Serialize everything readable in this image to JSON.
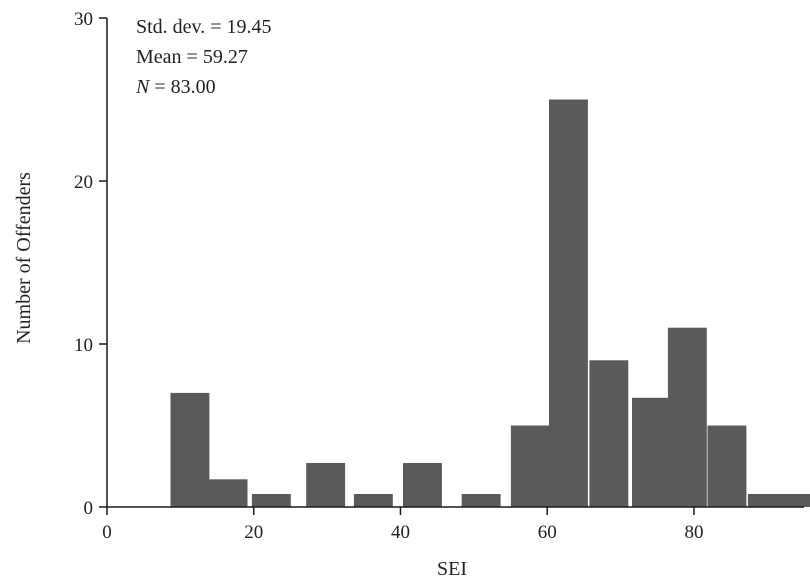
{
  "chart_data": {
    "type": "bar",
    "title": "",
    "xlabel": "SEI",
    "ylabel": "Number of Offenders",
    "xlim": [
      0,
      95
    ],
    "ylim": [
      0,
      30
    ],
    "x_ticks": [
      0,
      20,
      40,
      60,
      80
    ],
    "y_ticks": [
      0,
      10,
      20,
      30
    ],
    "bin_width": 5.3,
    "bin_centers": [
      11.3,
      16.5,
      22.4,
      29.8,
      36.3,
      43.0,
      51.0,
      57.7,
      62.9,
      68.4,
      74.2,
      79.1,
      84.5,
      90.0,
      94.9
    ],
    "values": [
      7,
      1.7,
      0.8,
      2.7,
      0.8,
      2.7,
      0.8,
      5,
      25,
      9,
      6.7,
      11,
      5,
      0.8,
      0.8
    ],
    "bar_color": "#5a5a5a",
    "grid": false,
    "annotations": {
      "std_dev": "Std. dev. = 19.45",
      "mean": "Mean = 59.27",
      "n_label": "N",
      "n_value": " = 83.00"
    }
  }
}
